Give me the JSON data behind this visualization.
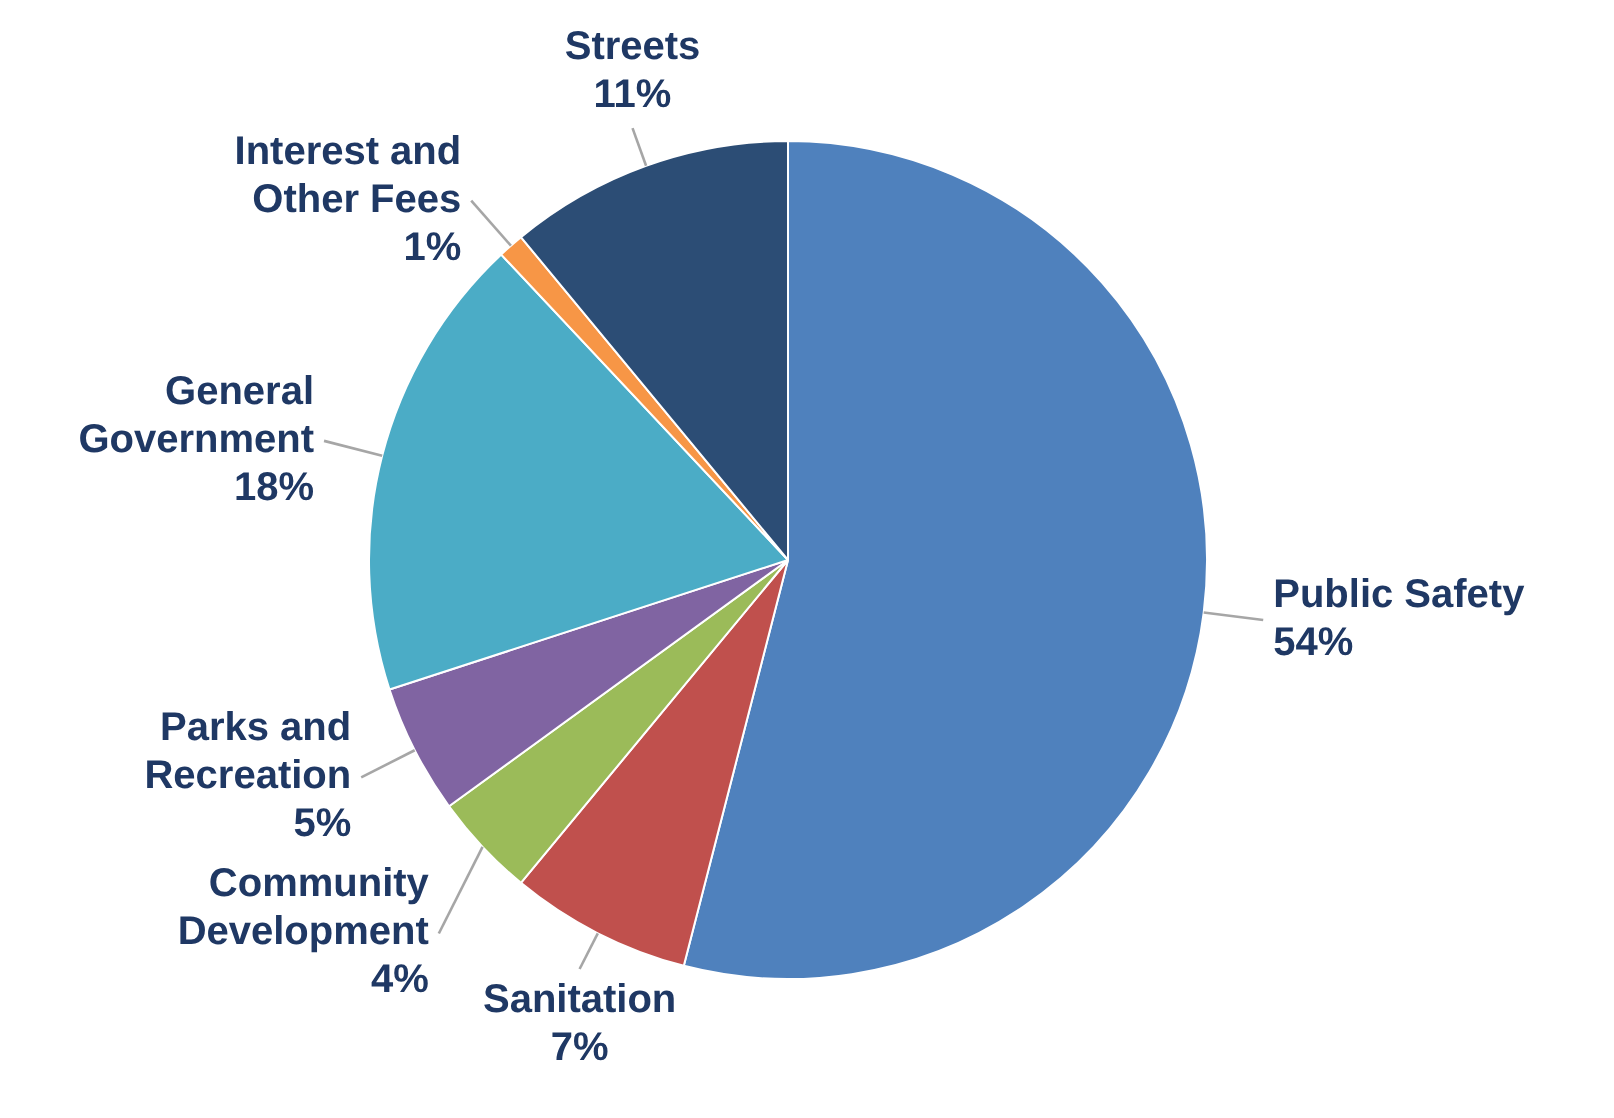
{
  "chart_data": {
    "type": "pie",
    "categories": [
      "Public Safety",
      "Sanitation",
      "Community Development",
      "Parks and Recreation",
      "General Government",
      "Interest and Other Fees",
      "Streets"
    ],
    "values": [
      54,
      7,
      4,
      5,
      18,
      1,
      11
    ],
    "colors": [
      "#4f81bd",
      "#c0504d",
      "#9bbb59",
      "#8064a2",
      "#4bacc6",
      "#f79646",
      "#2c4d75"
    ],
    "value_labels": [
      "54%",
      "7%",
      "4%",
      "5%",
      "18%",
      "1%",
      "11%"
    ],
    "legend": false
  }
}
